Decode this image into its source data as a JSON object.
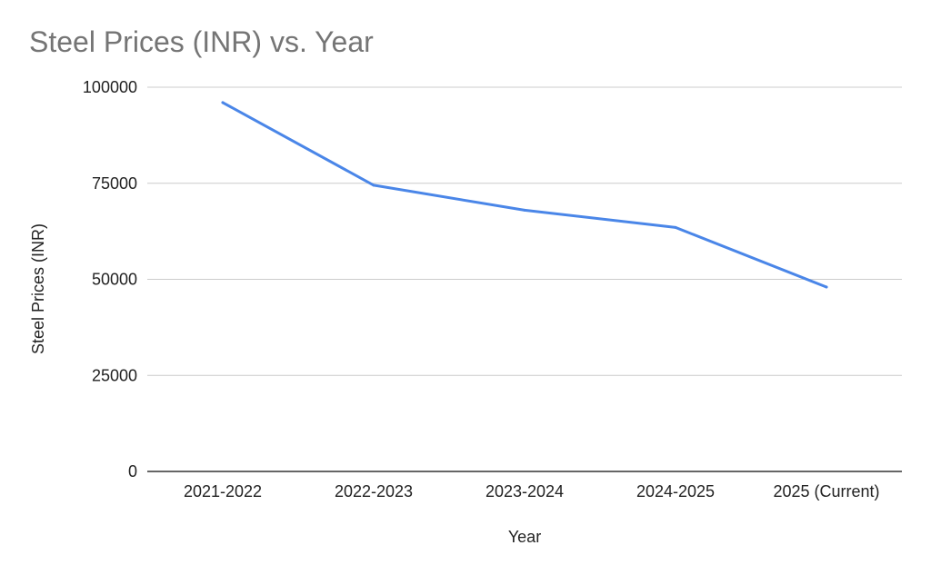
{
  "chart_data": {
    "type": "line",
    "title": "Steel Prices (INR) vs. Year",
    "xlabel": "Year",
    "ylabel": "Steel Prices (INR)",
    "categories": [
      "2021-2022",
      "2022-2023",
      "2023-2024",
      "2024-2025",
      "2025 (Current)"
    ],
    "series": [
      {
        "values": [
          96000,
          74500,
          68000,
          63500,
          48000
        ]
      }
    ],
    "ylim": [
      0,
      100000
    ],
    "yticks": [
      "0",
      "25000",
      "50000",
      "75000",
      "100000"
    ],
    "grid": true,
    "legend": "none",
    "colors": {
      "line": "#4a86e8",
      "gridline": "#cccccc",
      "baseline": "#333333",
      "title": "#757575",
      "text": "#222222"
    }
  }
}
